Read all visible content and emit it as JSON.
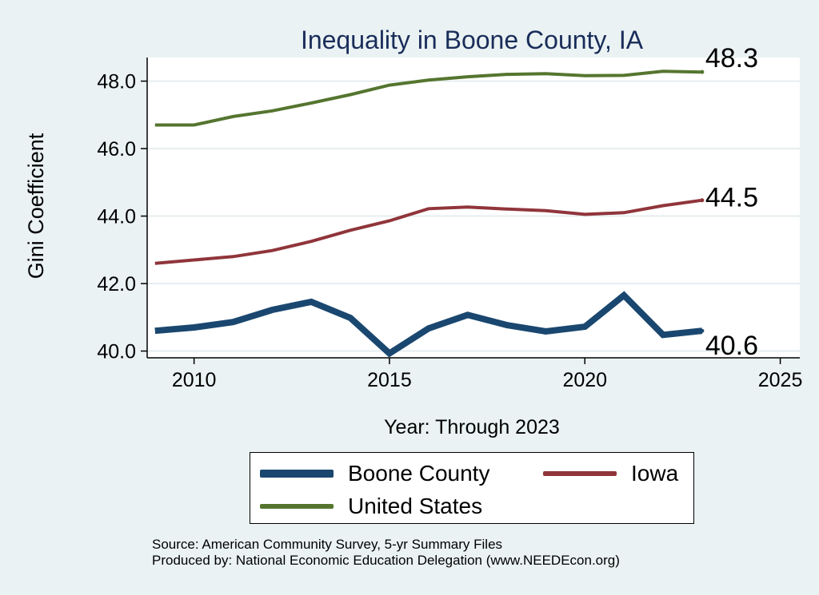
{
  "colors": {
    "background": "#eaf2f3",
    "plot_background": "#ffffff",
    "title": "#1a2d5a",
    "boone": "#1a476f",
    "iowa": "#90353b",
    "us": "#55752f",
    "grid": "#e6eef0"
  },
  "chart_data": {
    "type": "line",
    "title": "Inequality in Boone County, IA",
    "xlabel": "Year: Through 2023",
    "ylabel": "Gini Coefficient",
    "xlim": [
      2008.8,
      2025.5
    ],
    "ylim": [
      39.8,
      48.7
    ],
    "x_ticks": [
      2010,
      2015,
      2020,
      2025
    ],
    "x_tick_labels": [
      "2010",
      "2015",
      "2020",
      "2025"
    ],
    "y_ticks": [
      40,
      42,
      44,
      46,
      48
    ],
    "y_tick_labels": [
      "40.0",
      "42.0",
      "44.0",
      "46.0",
      "48.0"
    ],
    "grid": true,
    "x": [
      2009,
      2010,
      2011,
      2012,
      2013,
      2014,
      2015,
      2016,
      2017,
      2018,
      2019,
      2020,
      2021,
      2022,
      2023
    ],
    "series": [
      {
        "key": "us",
        "name": "United States",
        "values": [
          46.7,
          46.7,
          46.95,
          47.12,
          47.35,
          47.6,
          47.88,
          48.03,
          48.13,
          48.2,
          48.22,
          48.16,
          48.17,
          48.29,
          48.27
        ],
        "end_label": "48.3"
      },
      {
        "key": "iowa",
        "name": "Iowa",
        "values": [
          42.6,
          42.7,
          42.8,
          42.98,
          43.25,
          43.58,
          43.86,
          44.22,
          44.27,
          44.21,
          44.16,
          44.05,
          44.1,
          44.31,
          44.47
        ],
        "end_label": "44.5"
      },
      {
        "key": "boone",
        "name": "Boone County",
        "values": [
          40.6,
          40.7,
          40.86,
          41.22,
          41.46,
          40.98,
          39.93,
          40.67,
          41.07,
          40.77,
          40.58,
          40.72,
          41.65,
          40.48,
          40.6
        ],
        "end_label": "40.6"
      }
    ],
    "legend_position": "bottom"
  },
  "legend": {
    "boone": "Boone County",
    "iowa": "Iowa",
    "us": "United States"
  },
  "source": {
    "line1": "Source: American Community Survey, 5-yr Summary Files",
    "line2": "Produced by: National Economic Education Delegation (www.NEEDEcon.org)"
  }
}
